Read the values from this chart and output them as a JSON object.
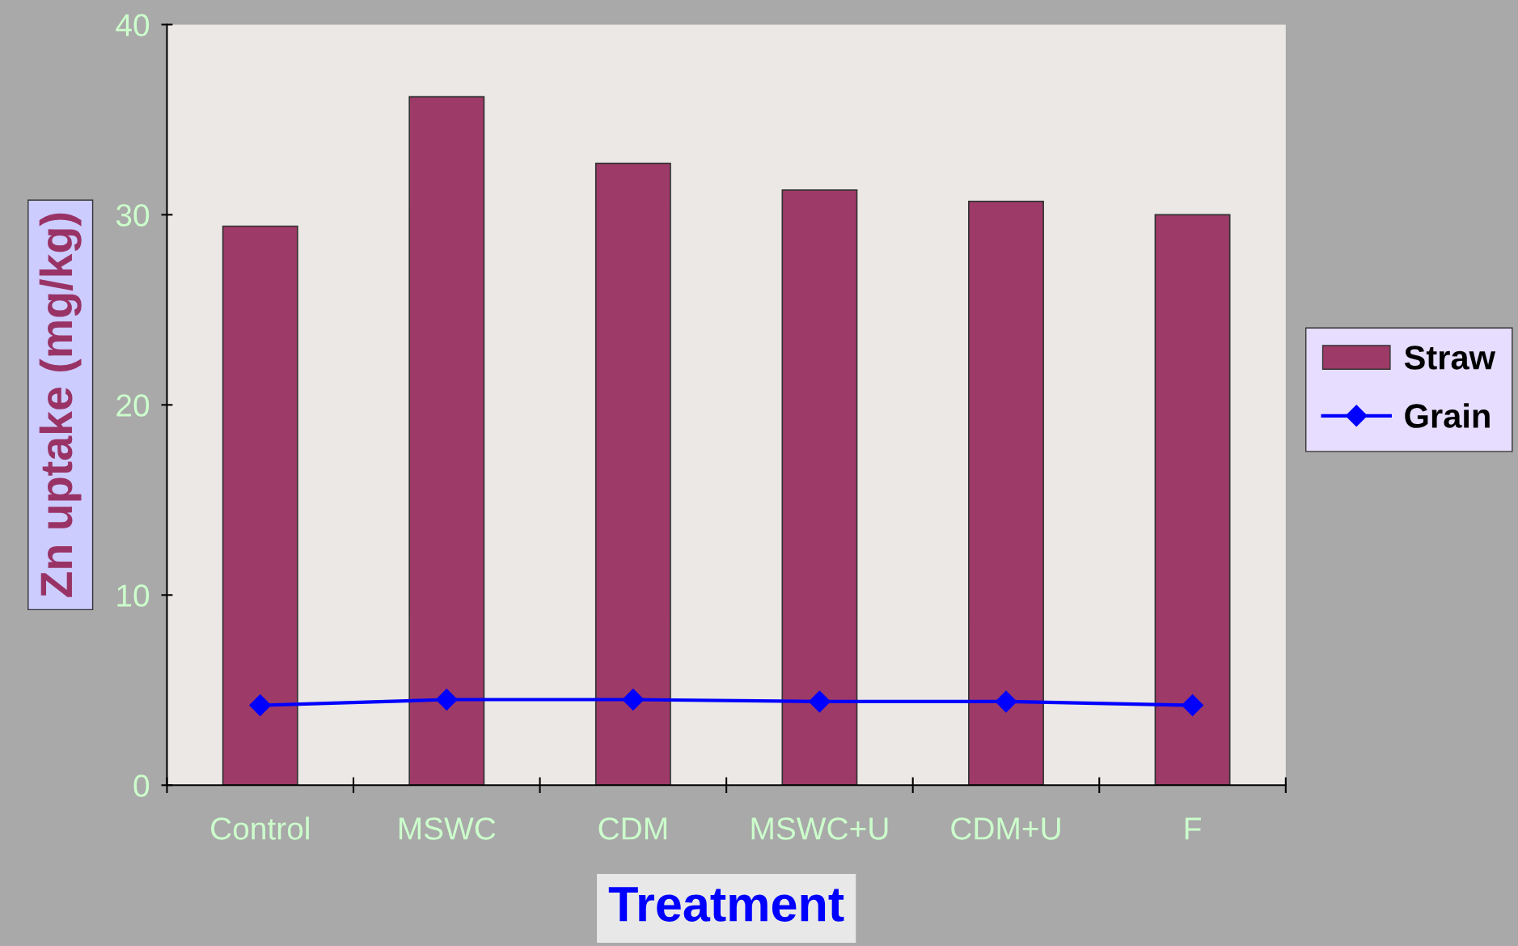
{
  "chart_data": {
    "type": "bar",
    "xlabel": "Treatment",
    "ylabel": "Zn uptake (mg/kg)",
    "categories": [
      "Control",
      "MSWC",
      "CDM",
      "MSWC+U",
      "CDM+U",
      "F"
    ],
    "series": [
      {
        "name": "Straw",
        "color": "#9e3a68",
        "values": [
          29.4,
          36.2,
          32.7,
          31.3,
          30.7,
          30.0
        ]
      },
      {
        "name": "Grain",
        "type": "line",
        "color": "#0000ff",
        "values": [
          4.2,
          4.5,
          4.5,
          4.4,
          4.4,
          4.2
        ],
        "marker": "diamond",
        "line_style": "solid"
      }
    ],
    "ylim": [
      0,
      40
    ],
    "yticks": [
      0,
      10,
      20,
      30,
      40
    ],
    "grid": false,
    "legend": "right"
  }
}
